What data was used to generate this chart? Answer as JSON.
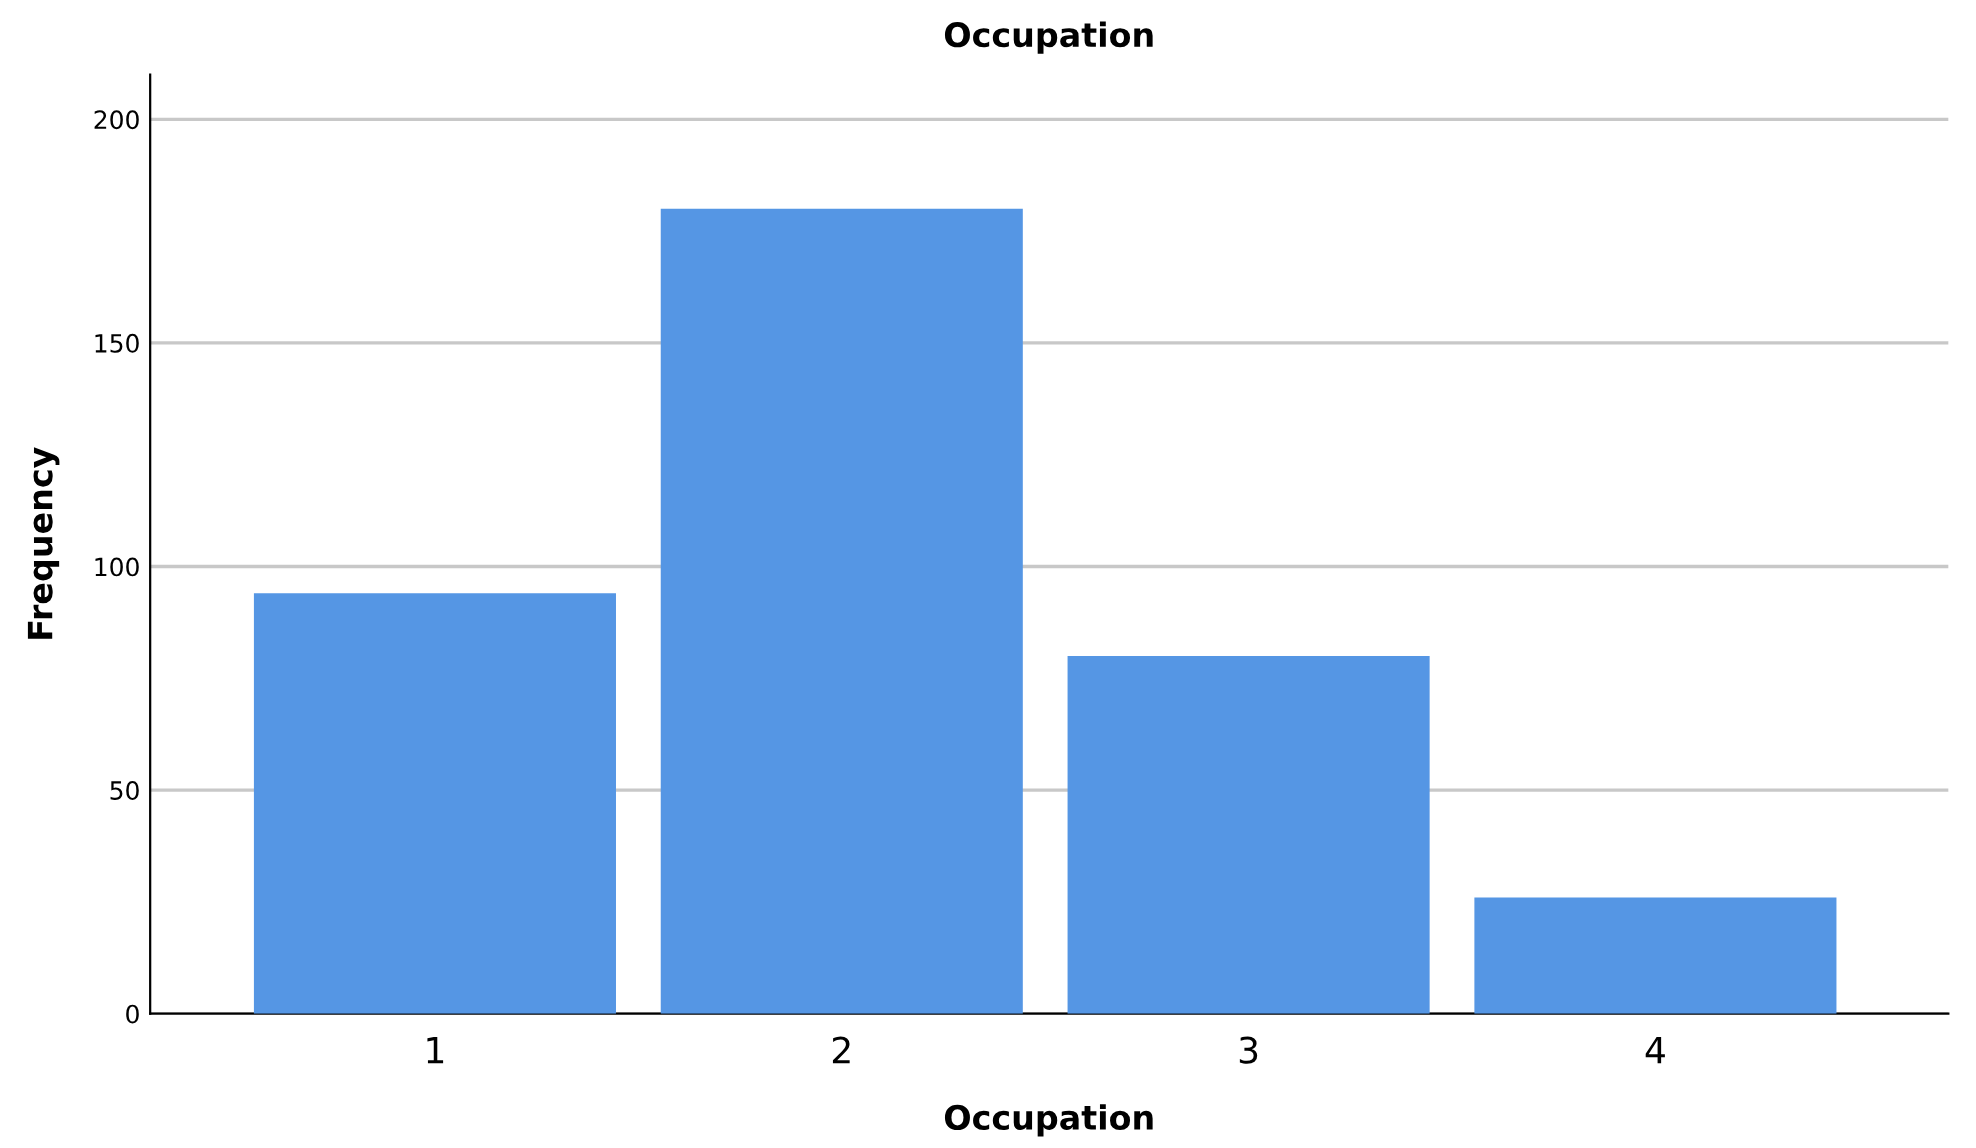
{
  "chart_data": {
    "type": "bar",
    "title": "Occupation",
    "xlabel": "Occupation",
    "ylabel": "Frequency",
    "categories": [
      "1",
      "2",
      "3",
      "4"
    ],
    "values": [
      94,
      180,
      80,
      26
    ],
    "color": "#5596e4",
    "ylim": [
      0,
      210
    ],
    "yticks": [
      0,
      50,
      100,
      150,
      200
    ],
    "grid": "y"
  }
}
